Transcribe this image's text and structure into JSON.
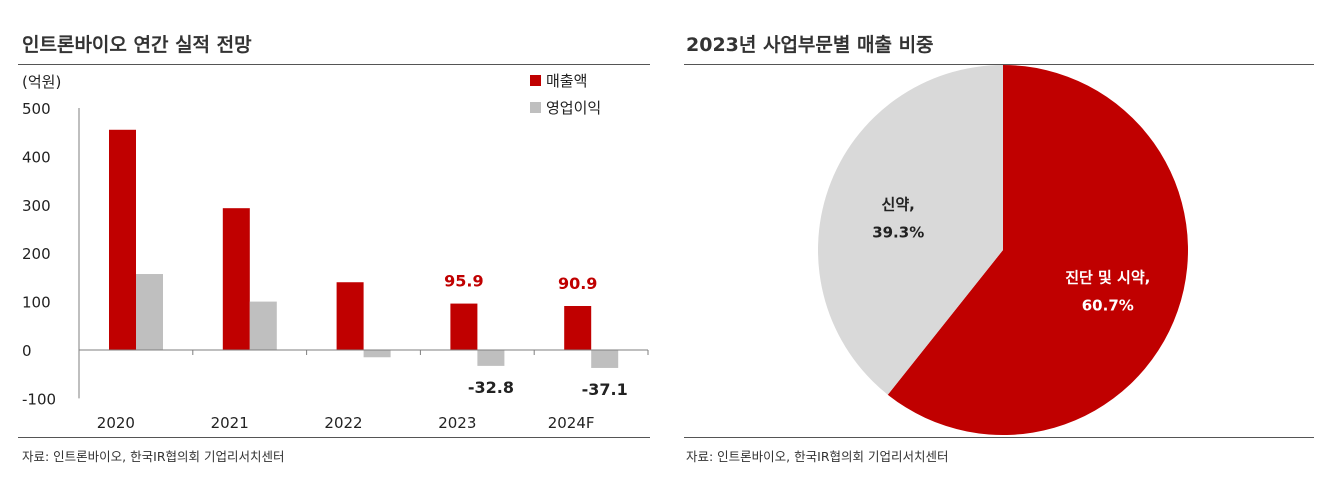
{
  "left_panel": {
    "title": "인트론바이오 연간 실적 전망",
    "source": "자료: 인트론바이오, 한국IR협의회 기업리서치센터"
  },
  "right_panel": {
    "title": "2023년 사업부문별 매출 비중",
    "source": "자료: 인트론바이오, 한국IR협의회 기업리서치센터"
  },
  "chart_data": [
    {
      "type": "bar",
      "title": "인트론바이오 연간 실적 전망",
      "unit_label": "(억원)",
      "categories": [
        "2020",
        "2021",
        "2022",
        "2023",
        "2024F"
      ],
      "series": [
        {
          "name": "매출액",
          "color": "#c00000",
          "values": [
            455,
            293,
            140,
            95.9,
            90.9
          ]
        },
        {
          "name": "영업이익",
          "color": "#bfbfbf",
          "values": [
            157,
            100,
            -15,
            -32.8,
            -37.1
          ]
        }
      ],
      "yticks": [
        500,
        400,
        300,
        200,
        100,
        0,
        -100
      ],
      "ytick_labels": [
        "500",
        "400",
        "300",
        "200",
        "100",
        "0",
        "-100"
      ],
      "ylim": [
        -100,
        500
      ],
      "legend_position": "top-right",
      "data_labels": [
        {
          "series": "매출액",
          "category": "2023",
          "text": "95.9",
          "color": "#c00000",
          "value": 95.9,
          "side": "above"
        },
        {
          "series": "매출액",
          "category": "2024F",
          "text": "90.9",
          "color": "#c00000",
          "value": 90.9,
          "side": "above"
        },
        {
          "series": "영업이익",
          "category": "2023",
          "text": "-32.8",
          "color": "#222222",
          "value": -32.8,
          "side": "below"
        },
        {
          "series": "영업이익",
          "category": "2024F",
          "text": "-37.1",
          "color": "#222222",
          "value": -37.1,
          "side": "below"
        }
      ]
    },
    {
      "type": "pie",
      "title": "2023년 사업부문별 매출 비중",
      "slices": [
        {
          "label": "진단 및 시약,",
          "value": 60.7,
          "pct_text": "60.7%",
          "color": "#c00000",
          "label_color": "#ffffff"
        },
        {
          "label": "신약,",
          "value": 39.3,
          "pct_text": "39.3%",
          "color": "#d9d9d9",
          "label_color": "#222222"
        }
      ],
      "start": "12 o'clock",
      "direction": "clockwise"
    }
  ]
}
